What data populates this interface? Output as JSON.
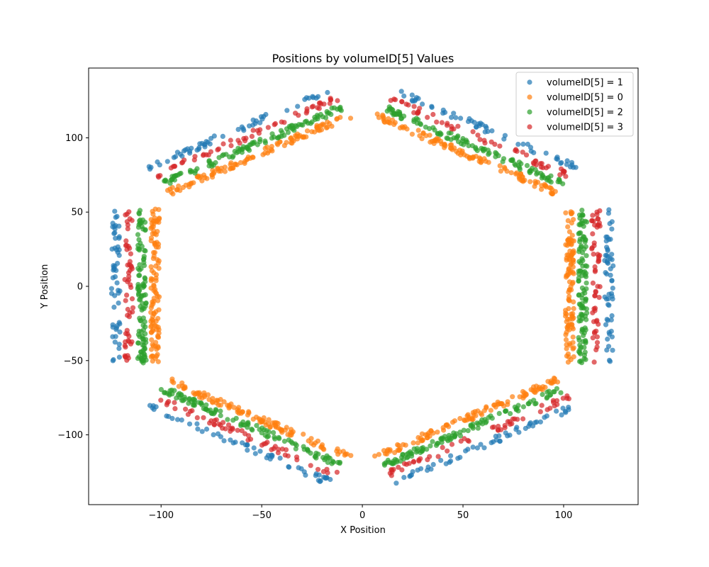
{
  "chart_data": {
    "type": "scatter",
    "title": "Positions by volumeID[5] Values",
    "xlabel": "X Position",
    "ylabel": "Y Position",
    "xlim": [
      -136,
      137
    ],
    "ylim": [
      -147,
      147
    ],
    "x_ticks": [
      -100,
      -50,
      0,
      50,
      100
    ],
    "y_ticks": [
      -100,
      -50,
      0,
      50,
      100
    ],
    "x_tick_labels": [
      "−100",
      "−50",
      "0",
      "50",
      "100"
    ],
    "y_tick_labels": [
      "−100",
      "−50",
      "0",
      "50",
      "100"
    ],
    "grid": false,
    "legend_position": "top-right",
    "alpha": 0.7,
    "geometry_note": "hexagonal ring of 6 modules, each with 4 layers ordered inner to outer: volumeID 0, 2, 3, 1",
    "series": [
      {
        "name": "volumeID[5] = 1",
        "color": "#1f77b4",
        "layer_rank": 3,
        "x_range": [
          -125,
          125
        ],
        "y_range": [
          -130,
          131
        ]
      },
      {
        "name": "volumeID[5] = 0",
        "color": "#ff7f0e",
        "layer_rank": 0,
        "x_range": [
          -110,
          110
        ],
        "y_range": [
          -120,
          120
        ]
      },
      {
        "name": "volumeID[5] = 2",
        "color": "#2ca02c",
        "layer_rank": 1,
        "x_range": [
          -105,
          108
        ],
        "y_range": [
          -122,
          122
        ]
      },
      {
        "name": "volumeID[5] = 3",
        "color": "#d62728",
        "layer_rank": 2,
        "x_range": [
          -123,
          123
        ],
        "y_range": [
          -134,
          133
        ]
      }
    ]
  }
}
